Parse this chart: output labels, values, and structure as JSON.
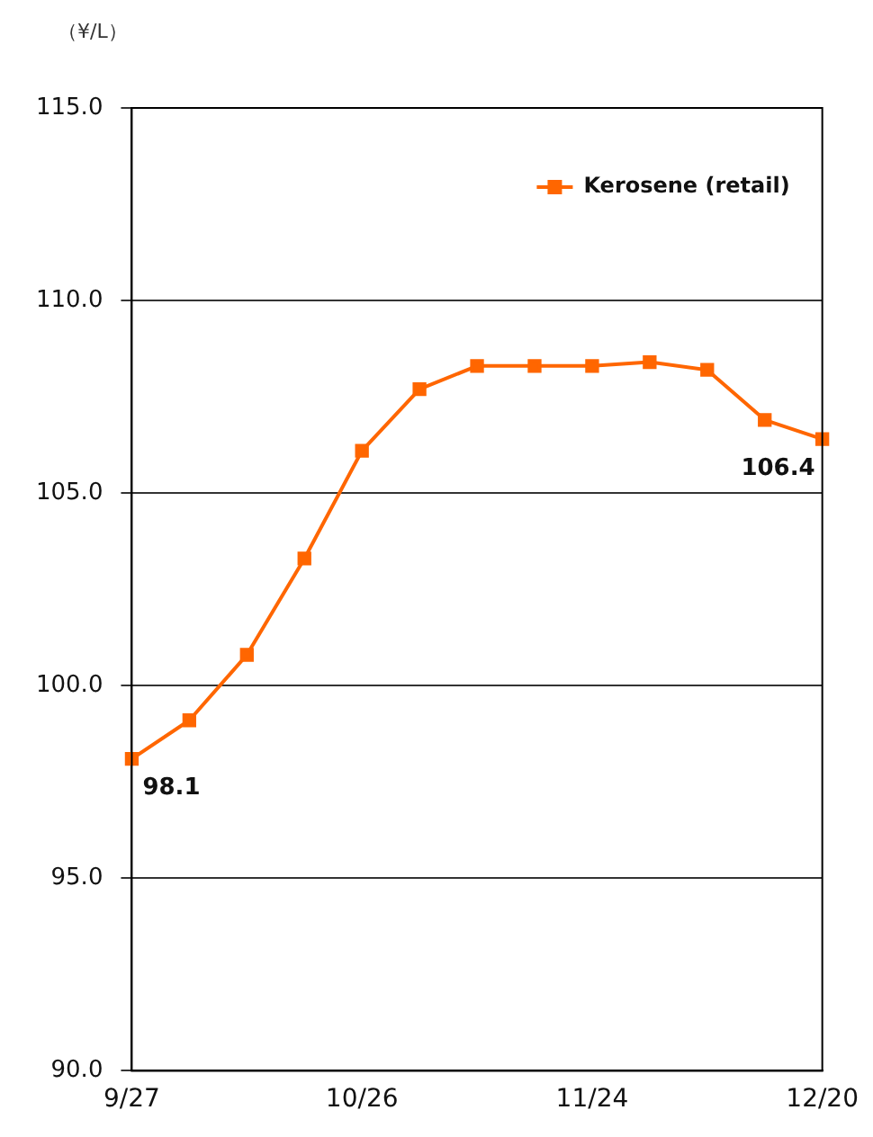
{
  "chart_data": {
    "type": "line",
    "ylabel": "（¥/L）",
    "categories": [
      "9/27",
      null,
      null,
      null,
      "10/26",
      null,
      null,
      null,
      "11/24",
      null,
      null,
      null,
      "12/20"
    ],
    "series": [
      {
        "name": "Kerosene (retail)",
        "color": "#ff6600",
        "values": [
          98.1,
          99.1,
          100.8,
          103.3,
          106.1,
          107.7,
          108.3,
          108.3,
          108.3,
          108.4,
          108.2,
          106.9,
          106.4
        ]
      }
    ],
    "ylim": [
      90,
      115
    ],
    "yticks": [
      {
        "value": 90,
        "label": "90.0"
      },
      {
        "value": 95,
        "label": "95.0"
      },
      {
        "value": 100,
        "label": "100.0"
      },
      {
        "value": 105,
        "label": "105.0"
      },
      {
        "value": 110,
        "label": "110.0"
      },
      {
        "value": 115,
        "label": "115.0"
      }
    ],
    "grid": "y",
    "legend": "top right",
    "marker": "square",
    "line_style": "solid",
    "annotations": [
      {
        "text": "98.1",
        "x": "9/27",
        "y": 98.1
      },
      {
        "text": "106.4",
        "x": "12/20",
        "y": 106.4
      }
    ]
  }
}
